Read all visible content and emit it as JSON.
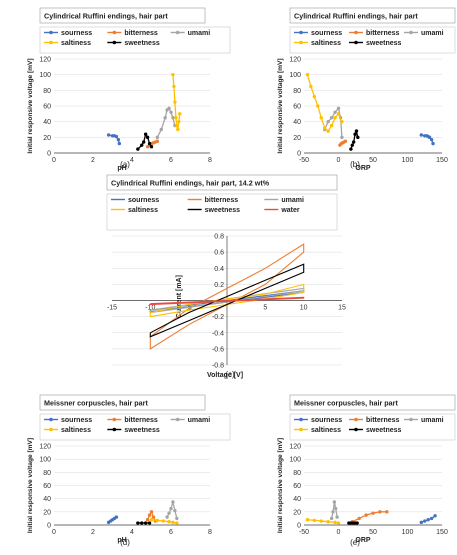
{
  "chart_data": [
    {
      "id": "a",
      "type": "scatter-line",
      "title": "Cylindrical Ruffini endings, hair part",
      "xlabel": "pH",
      "ylabel": "Initial responsive voltage   [mV]",
      "xlim": [
        0,
        8
      ],
      "ylim": [
        0,
        120
      ],
      "xticks": [
        "0",
        "2",
        "4",
        "6",
        "8"
      ],
      "yticks": [
        "0",
        "20",
        "40",
        "60",
        "80",
        "100",
        "120"
      ],
      "caption": "(a)",
      "grid": true,
      "legend_placement": "top",
      "series": [
        {
          "name": "sourness",
          "color": "#4472C4",
          "x": [
            2.8,
            3.0,
            3.1,
            3.2,
            3.3,
            3.35
          ],
          "y": [
            23,
            22,
            22,
            21,
            17,
            12
          ]
        },
        {
          "name": "bitterness",
          "color": "#ED7D31",
          "x": [
            4.8,
            4.9,
            5.0,
            5.1,
            5.2,
            5.3
          ],
          "y": [
            8,
            10,
            12,
            13,
            14,
            15
          ]
        },
        {
          "name": "umami",
          "color": "#A5A5A5",
          "x": [
            5.3,
            5.5,
            5.7,
            5.8,
            5.9,
            6.0,
            6.1,
            6.2
          ],
          "y": [
            20,
            30,
            45,
            55,
            57,
            52,
            45,
            35
          ]
        },
        {
          "name": "saltiness",
          "color": "#FFC000",
          "x": [
            6.1,
            6.15,
            6.2,
            6.25,
            6.3,
            6.35,
            6.4,
            6.45
          ],
          "y": [
            100,
            85,
            65,
            45,
            35,
            30,
            40,
            50
          ]
        },
        {
          "name": "sweetness",
          "color": "#000000",
          "x": [
            4.3,
            4.5,
            4.6,
            4.7,
            4.8,
            4.9,
            5.0
          ],
          "y": [
            5,
            10,
            14,
            24,
            20,
            12,
            8
          ]
        }
      ]
    },
    {
      "id": "b",
      "type": "scatter-line",
      "title": "Cylindrical Ruffini endings, hair part",
      "xlabel": "ORP",
      "ylabel": "Initial responsive voltage   [mV]",
      "xlim": [
        -50,
        150
      ],
      "ylim": [
        0,
        120
      ],
      "xticks": [
        "-50",
        "0",
        "50",
        "100",
        "150"
      ],
      "yticks": [
        "0",
        "20",
        "40",
        "60",
        "80",
        "100",
        "120"
      ],
      "caption": "(b)",
      "grid": true,
      "legend_placement": "top",
      "series": [
        {
          "name": "sourness",
          "color": "#4472C4",
          "x": [
            120,
            125,
            128,
            130,
            132,
            135,
            137
          ],
          "y": [
            23,
            22,
            22,
            21,
            20,
            17,
            12
          ]
        },
        {
          "name": "bitterness",
          "color": "#ED7D31",
          "x": [
            2,
            4,
            6,
            8,
            10
          ],
          "y": [
            10,
            12,
            13,
            14,
            15
          ]
        },
        {
          "name": "umami",
          "color": "#A5A5A5",
          "x": [
            -20,
            -15,
            -10,
            -5,
            0,
            3,
            5
          ],
          "y": [
            30,
            40,
            45,
            52,
            57,
            45,
            20
          ]
        },
        {
          "name": "saltiness",
          "color": "#FFC000",
          "x": [
            -45,
            -40,
            -35,
            -30,
            -25,
            -20,
            -15,
            -10,
            -5,
            0,
            5
          ],
          "y": [
            100,
            85,
            72,
            60,
            45,
            32,
            28,
            35,
            45,
            50,
            40
          ]
        },
        {
          "name": "sweetness",
          "color": "#000000",
          "x": [
            18,
            20,
            22,
            24,
            26,
            28
          ],
          "y": [
            5,
            10,
            14,
            24,
            28,
            20
          ]
        }
      ]
    },
    {
      "id": "c",
      "type": "line",
      "title": "Cylindrical Ruffini endings, hair part, 14.2 wt%",
      "xlabel": "Voltage  [V]",
      "ylabel": "Current  [mA]",
      "xlim": [
        -15,
        15
      ],
      "ylim": [
        -0.8,
        0.8
      ],
      "xticks": [
        "-15",
        "-10",
        "-5",
        "0",
        "5",
        "10",
        "15"
      ],
      "yticks": [
        "-0.8",
        "-0.6",
        "-0.4",
        "-0.2",
        "0",
        "0.2",
        "0.4",
        "0.6",
        "0.8"
      ],
      "caption": "(c)",
      "grid": true,
      "legend_placement": "top",
      "series": [
        {
          "name": "sourness",
          "color": "#4472C4",
          "upper": [
            [
              -10,
              -0.12
            ],
            [
              0,
              0.0
            ],
            [
              10,
              0.12
            ]
          ],
          "lower": [
            [
              10,
              0.1
            ],
            [
              0,
              -0.02
            ],
            [
              -10,
              -0.14
            ]
          ]
        },
        {
          "name": "bitterness",
          "color": "#ED7D31",
          "upper": [
            [
              -10,
              -0.45
            ],
            [
              -5,
              -0.1
            ],
            [
              0,
              0.15
            ],
            [
              5,
              0.4
            ],
            [
              10,
              0.7
            ]
          ],
          "lower": [
            [
              10,
              0.6
            ],
            [
              5,
              0.2
            ],
            [
              0,
              -0.05
            ],
            [
              -5,
              -0.3
            ],
            [
              -10,
              -0.6
            ]
          ]
        },
        {
          "name": "umami",
          "color": "#A5A5A5",
          "upper": [
            [
              -10,
              -0.12
            ],
            [
              0,
              0.02
            ],
            [
              10,
              0.15
            ]
          ],
          "lower": [
            [
              10,
              0.12
            ],
            [
              0,
              -0.02
            ],
            [
              -10,
              -0.15
            ]
          ]
        },
        {
          "name": "saltiness",
          "color": "#FFC000",
          "upper": [
            [
              -10,
              -0.15
            ],
            [
              -5,
              -0.05
            ],
            [
              0,
              0.02
            ],
            [
              5,
              0.08
            ],
            [
              10,
              0.2
            ]
          ],
          "lower": [
            [
              10,
              0.1
            ],
            [
              5,
              0.02
            ],
            [
              0,
              -0.05
            ],
            [
              -5,
              -0.12
            ],
            [
              -10,
              -0.2
            ]
          ]
        },
        {
          "name": "sweetness",
          "color": "#000000",
          "upper": [
            [
              -10,
              -0.4
            ],
            [
              -5,
              -0.15
            ],
            [
              0,
              0.05
            ],
            [
              5,
              0.25
            ],
            [
              10,
              0.45
            ]
          ],
          "lower": [
            [
              10,
              0.35
            ],
            [
              5,
              0.15
            ],
            [
              0,
              -0.05
            ],
            [
              -5,
              -0.25
            ],
            [
              -10,
              -0.45
            ]
          ]
        },
        {
          "name": "water",
          "color": "#E74C3C",
          "upper": [
            [
              -10,
              -0.04
            ],
            [
              0,
              0.0
            ],
            [
              10,
              0.04
            ]
          ],
          "lower": [
            [
              10,
              0.03
            ],
            [
              0,
              -0.01
            ],
            [
              -10,
              -0.05
            ]
          ]
        }
      ]
    },
    {
      "id": "d",
      "type": "scatter-line",
      "title": "Meissner corpuscles, hair part",
      "xlabel": "pH",
      "ylabel": "Initial responsive voltage   [mV]",
      "xlim": [
        0,
        8
      ],
      "ylim": [
        0,
        120
      ],
      "xticks": [
        "0",
        "2",
        "4",
        "6",
        "8"
      ],
      "yticks": [
        "0",
        "20",
        "40",
        "60",
        "80",
        "100",
        "120"
      ],
      "caption": "(d)",
      "grid": true,
      "legend_placement": "top",
      "series": [
        {
          "name": "sourness",
          "color": "#4472C4",
          "x": [
            2.8,
            2.9,
            3.0,
            3.1,
            3.2
          ],
          "y": [
            4,
            6,
            8,
            10,
            12
          ]
        },
        {
          "name": "bitterness",
          "color": "#ED7D31",
          "x": [
            4.8,
            4.9,
            5.0,
            5.1,
            5.2
          ],
          "y": [
            8,
            15,
            20,
            12,
            6
          ]
        },
        {
          "name": "umami",
          "color": "#A5A5A5",
          "x": [
            5.8,
            5.9,
            6.0,
            6.1,
            6.2,
            6.3
          ],
          "y": [
            12,
            18,
            25,
            35,
            22,
            10
          ]
        },
        {
          "name": "saltiness",
          "color": "#FFC000",
          "x": [
            5.0,
            5.3,
            5.6,
            5.9,
            6.1,
            6.3
          ],
          "y": [
            8,
            7,
            6,
            5,
            4,
            3
          ]
        },
        {
          "name": "sweetness",
          "color": "#000000",
          "x": [
            4.3,
            4.5,
            4.7,
            4.9
          ],
          "y": [
            3,
            3,
            3,
            3
          ]
        }
      ]
    },
    {
      "id": "e",
      "type": "scatter-line",
      "title": "Meissner corpuscles, hair part",
      "xlabel": "ORP",
      "ylabel": "Initial responsive voltage   [mV]",
      "xlim": [
        -50,
        150
      ],
      "ylim": [
        0,
        120
      ],
      "xticks": [
        "-50",
        "0",
        "50",
        "100",
        "150"
      ],
      "yticks": [
        "0",
        "20",
        "40",
        "60",
        "80",
        "100",
        "120"
      ],
      "caption": "(e)",
      "grid": true,
      "legend_placement": "top",
      "series": [
        {
          "name": "sourness",
          "color": "#4472C4",
          "x": [
            120,
            125,
            130,
            135,
            140
          ],
          "y": [
            4,
            6,
            8,
            10,
            14
          ]
        },
        {
          "name": "bitterness",
          "color": "#ED7D31",
          "x": [
            20,
            30,
            40,
            50,
            60,
            70
          ],
          "y": [
            5,
            10,
            15,
            18,
            20,
            20
          ]
        },
        {
          "name": "umami",
          "color": "#A5A5A5",
          "x": [
            -10,
            -8,
            -6,
            -4,
            -2
          ],
          "y": [
            10,
            20,
            35,
            25,
            12
          ]
        },
        {
          "name": "saltiness",
          "color": "#FFC000",
          "x": [
            -45,
            -35,
            -25,
            -15,
            -5,
            0
          ],
          "y": [
            8,
            7,
            6,
            5,
            4,
            3
          ]
        },
        {
          "name": "sweetness",
          "color": "#000000",
          "x": [
            15,
            18,
            21,
            24,
            27
          ],
          "y": [
            3,
            3,
            3,
            3,
            3
          ]
        }
      ]
    }
  ]
}
